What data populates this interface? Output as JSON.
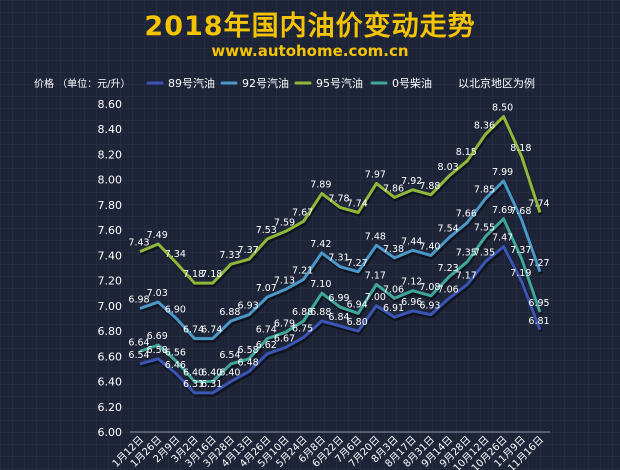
{
  "header": {
    "title": "2018年国内油价变动走势",
    "subtitle": "www.autohome.com.cn"
  },
  "chart_data": {
    "type": "line",
    "ylabel": "价格 （单位：元/升）",
    "note": "以北京地区为例",
    "ylim": [
      6.0,
      8.6
    ],
    "yticks": [
      "6.00",
      "6.20",
      "6.40",
      "6.60",
      "6.80",
      "7.00",
      "7.20",
      "7.40",
      "7.60",
      "7.80",
      "8.00",
      "8.20",
      "8.40",
      "8.60"
    ],
    "categories": [
      "1月12日",
      "1月26日",
      "2月9日",
      "3月2日",
      "3月16日",
      "3月28日",
      "4月13日",
      "4月26日",
      "5月10日",
      "5月24日",
      "6月8日",
      "6月22日",
      "7月6日",
      "7月20日",
      "8月3日",
      "8月17日",
      "8月31日",
      "9月14日",
      "9月28日",
      "10月12日",
      "10月26日",
      "11月9日",
      "11月16日"
    ],
    "series": [
      {
        "name": "89号汽油",
        "color": "#3b55b5",
        "values": [
          6.54,
          6.58,
          6.46,
          6.31,
          6.31,
          6.4,
          6.48,
          6.62,
          6.67,
          6.75,
          6.88,
          6.84,
          6.8,
          7.0,
          6.91,
          6.96,
          6.93,
          7.06,
          7.17,
          7.35,
          7.47,
          7.19,
          6.81
        ],
        "labels": [
          "6.54",
          "6.58",
          "6.46",
          "6.31",
          "6.31",
          "6.40",
          "6.48",
          "6.62",
          "6.67",
          "6.75",
          "6.88",
          "6.84",
          "6.80",
          "7.00",
          "6.91",
          "6.96",
          "6.93",
          "7.06",
          "7.17",
          "7.35",
          "7.47",
          "7.19",
          "6.81"
        ]
      },
      {
        "name": "92号汽油",
        "color": "#4a97c8",
        "values": [
          6.98,
          7.03,
          6.9,
          6.74,
          6.74,
          6.88,
          6.93,
          7.07,
          7.13,
          7.21,
          7.42,
          7.31,
          7.27,
          7.48,
          7.38,
          7.44,
          7.4,
          7.54,
          7.66,
          7.85,
          7.99,
          7.68,
          7.27
        ],
        "labels": [
          "6.98",
          "7.03",
          "6.90",
          "6.74",
          "6.74",
          "6.88",
          "6.93",
          "7.07",
          "7.13",
          "7.21",
          "7.42",
          "7.31",
          "7.27",
          "7.48",
          "7.38",
          "7.44",
          "7.40",
          "7.54",
          "7.66",
          "7.85",
          "7.99",
          "7.68",
          "7.27"
        ]
      },
      {
        "name": "95号汽油",
        "color": "#8fb83a",
        "values": [
          7.43,
          7.49,
          7.34,
          7.18,
          7.18,
          7.33,
          7.37,
          7.53,
          7.59,
          7.67,
          7.89,
          7.78,
          7.74,
          7.97,
          7.86,
          7.92,
          7.88,
          8.03,
          8.15,
          8.36,
          8.5,
          8.18,
          7.74
        ],
        "labels": [
          "7.43",
          "7.49",
          "7.34",
          "7.18",
          "7.18",
          "7.33",
          "7.37",
          "7.53",
          "7.59",
          "7.67",
          "7.89",
          "7.78",
          "7.74",
          "7.97",
          "7.86",
          "7.92",
          "7.88",
          "8.03",
          "8.15",
          "8.36",
          "8.50",
          "8.18",
          "7.74"
        ]
      },
      {
        "name": "0号柴油",
        "color": "#3fa79a",
        "values": [
          6.64,
          6.69,
          6.56,
          6.4,
          6.4,
          6.54,
          6.58,
          6.74,
          6.79,
          6.88,
          7.1,
          6.99,
          6.94,
          7.17,
          7.06,
          7.12,
          7.08,
          7.23,
          7.35,
          7.55,
          7.69,
          7.37,
          6.95
        ],
        "labels": [
          "6.64",
          "6.69",
          "6.56",
          "6.40",
          "6.40",
          "6.54",
          "6.58",
          "6.74",
          "6.79",
          "6.88",
          "7.10",
          "6.99",
          "6.94",
          "7.17",
          "7.06",
          "7.12",
          "7.08",
          "7.23",
          "7.35",
          "7.55",
          "7.69",
          "7.37",
          "6.95"
        ]
      }
    ]
  }
}
